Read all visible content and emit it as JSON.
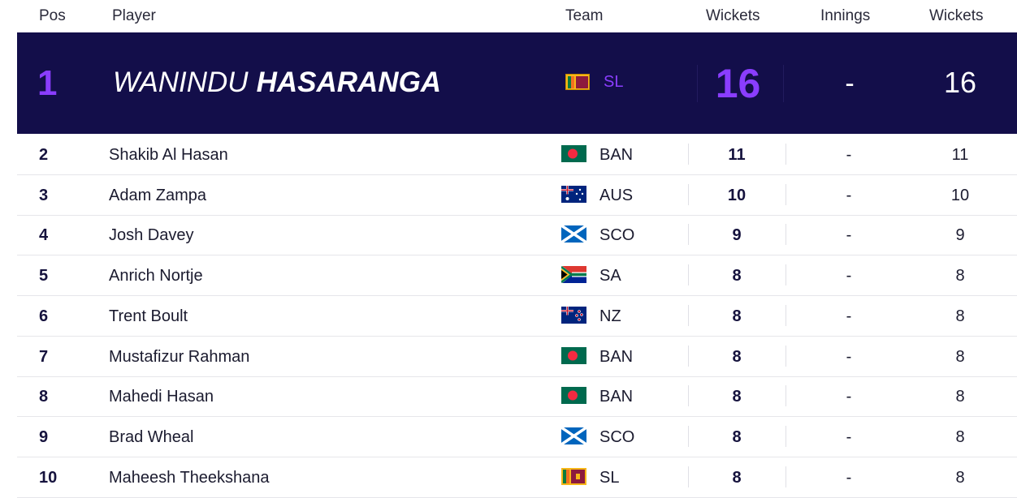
{
  "header": {
    "pos": "Pos",
    "player": "Player",
    "team": "Team",
    "wickets": "Wickets",
    "innings": "Innings",
    "wickets2": "Wickets"
  },
  "leader": {
    "pos": "1",
    "first_name": "WANINDU",
    "last_name": "HASARANGA",
    "team": "SL",
    "flag": "sri-lanka-flag",
    "wickets": "16",
    "innings": "-",
    "wickets2": "16"
  },
  "rows": [
    {
      "pos": "2",
      "name": "Shakib Al Hasan",
      "team": "BAN",
      "flag": "bangladesh-flag",
      "wickets": "11",
      "innings": "-",
      "wickets2": "11"
    },
    {
      "pos": "3",
      "name": "Adam Zampa",
      "team": "AUS",
      "flag": "australia-flag",
      "wickets": "10",
      "innings": "-",
      "wickets2": "10"
    },
    {
      "pos": "4",
      "name": "Josh Davey",
      "team": "SCO",
      "flag": "scotland-flag",
      "wickets": "9",
      "innings": "-",
      "wickets2": "9"
    },
    {
      "pos": "5",
      "name": "Anrich Nortje",
      "team": "SA",
      "flag": "south-africa-flag",
      "wickets": "8",
      "innings": "-",
      "wickets2": "8"
    },
    {
      "pos": "6",
      "name": "Trent Boult",
      "team": "NZ",
      "flag": "new-zealand-flag",
      "wickets": "8",
      "innings": "-",
      "wickets2": "8"
    },
    {
      "pos": "7",
      "name": "Mustafizur Rahman",
      "team": "BAN",
      "flag": "bangladesh-flag",
      "wickets": "8",
      "innings": "-",
      "wickets2": "8"
    },
    {
      "pos": "8",
      "name": "Mahedi Hasan",
      "team": "BAN",
      "flag": "bangladesh-flag",
      "wickets": "8",
      "innings": "-",
      "wickets2": "8"
    },
    {
      "pos": "9",
      "name": "Brad Wheal",
      "team": "SCO",
      "flag": "scotland-flag",
      "wickets": "8",
      "innings": "-",
      "wickets2": "8"
    },
    {
      "pos": "10",
      "name": "Maheesh Theekshana",
      "team": "SL",
      "flag": "sri-lanka-flag",
      "wickets": "8",
      "innings": "-",
      "wickets2": "8"
    }
  ],
  "colors": {
    "leader_bg": "#130e4a",
    "accent": "#8a3dff"
  }
}
